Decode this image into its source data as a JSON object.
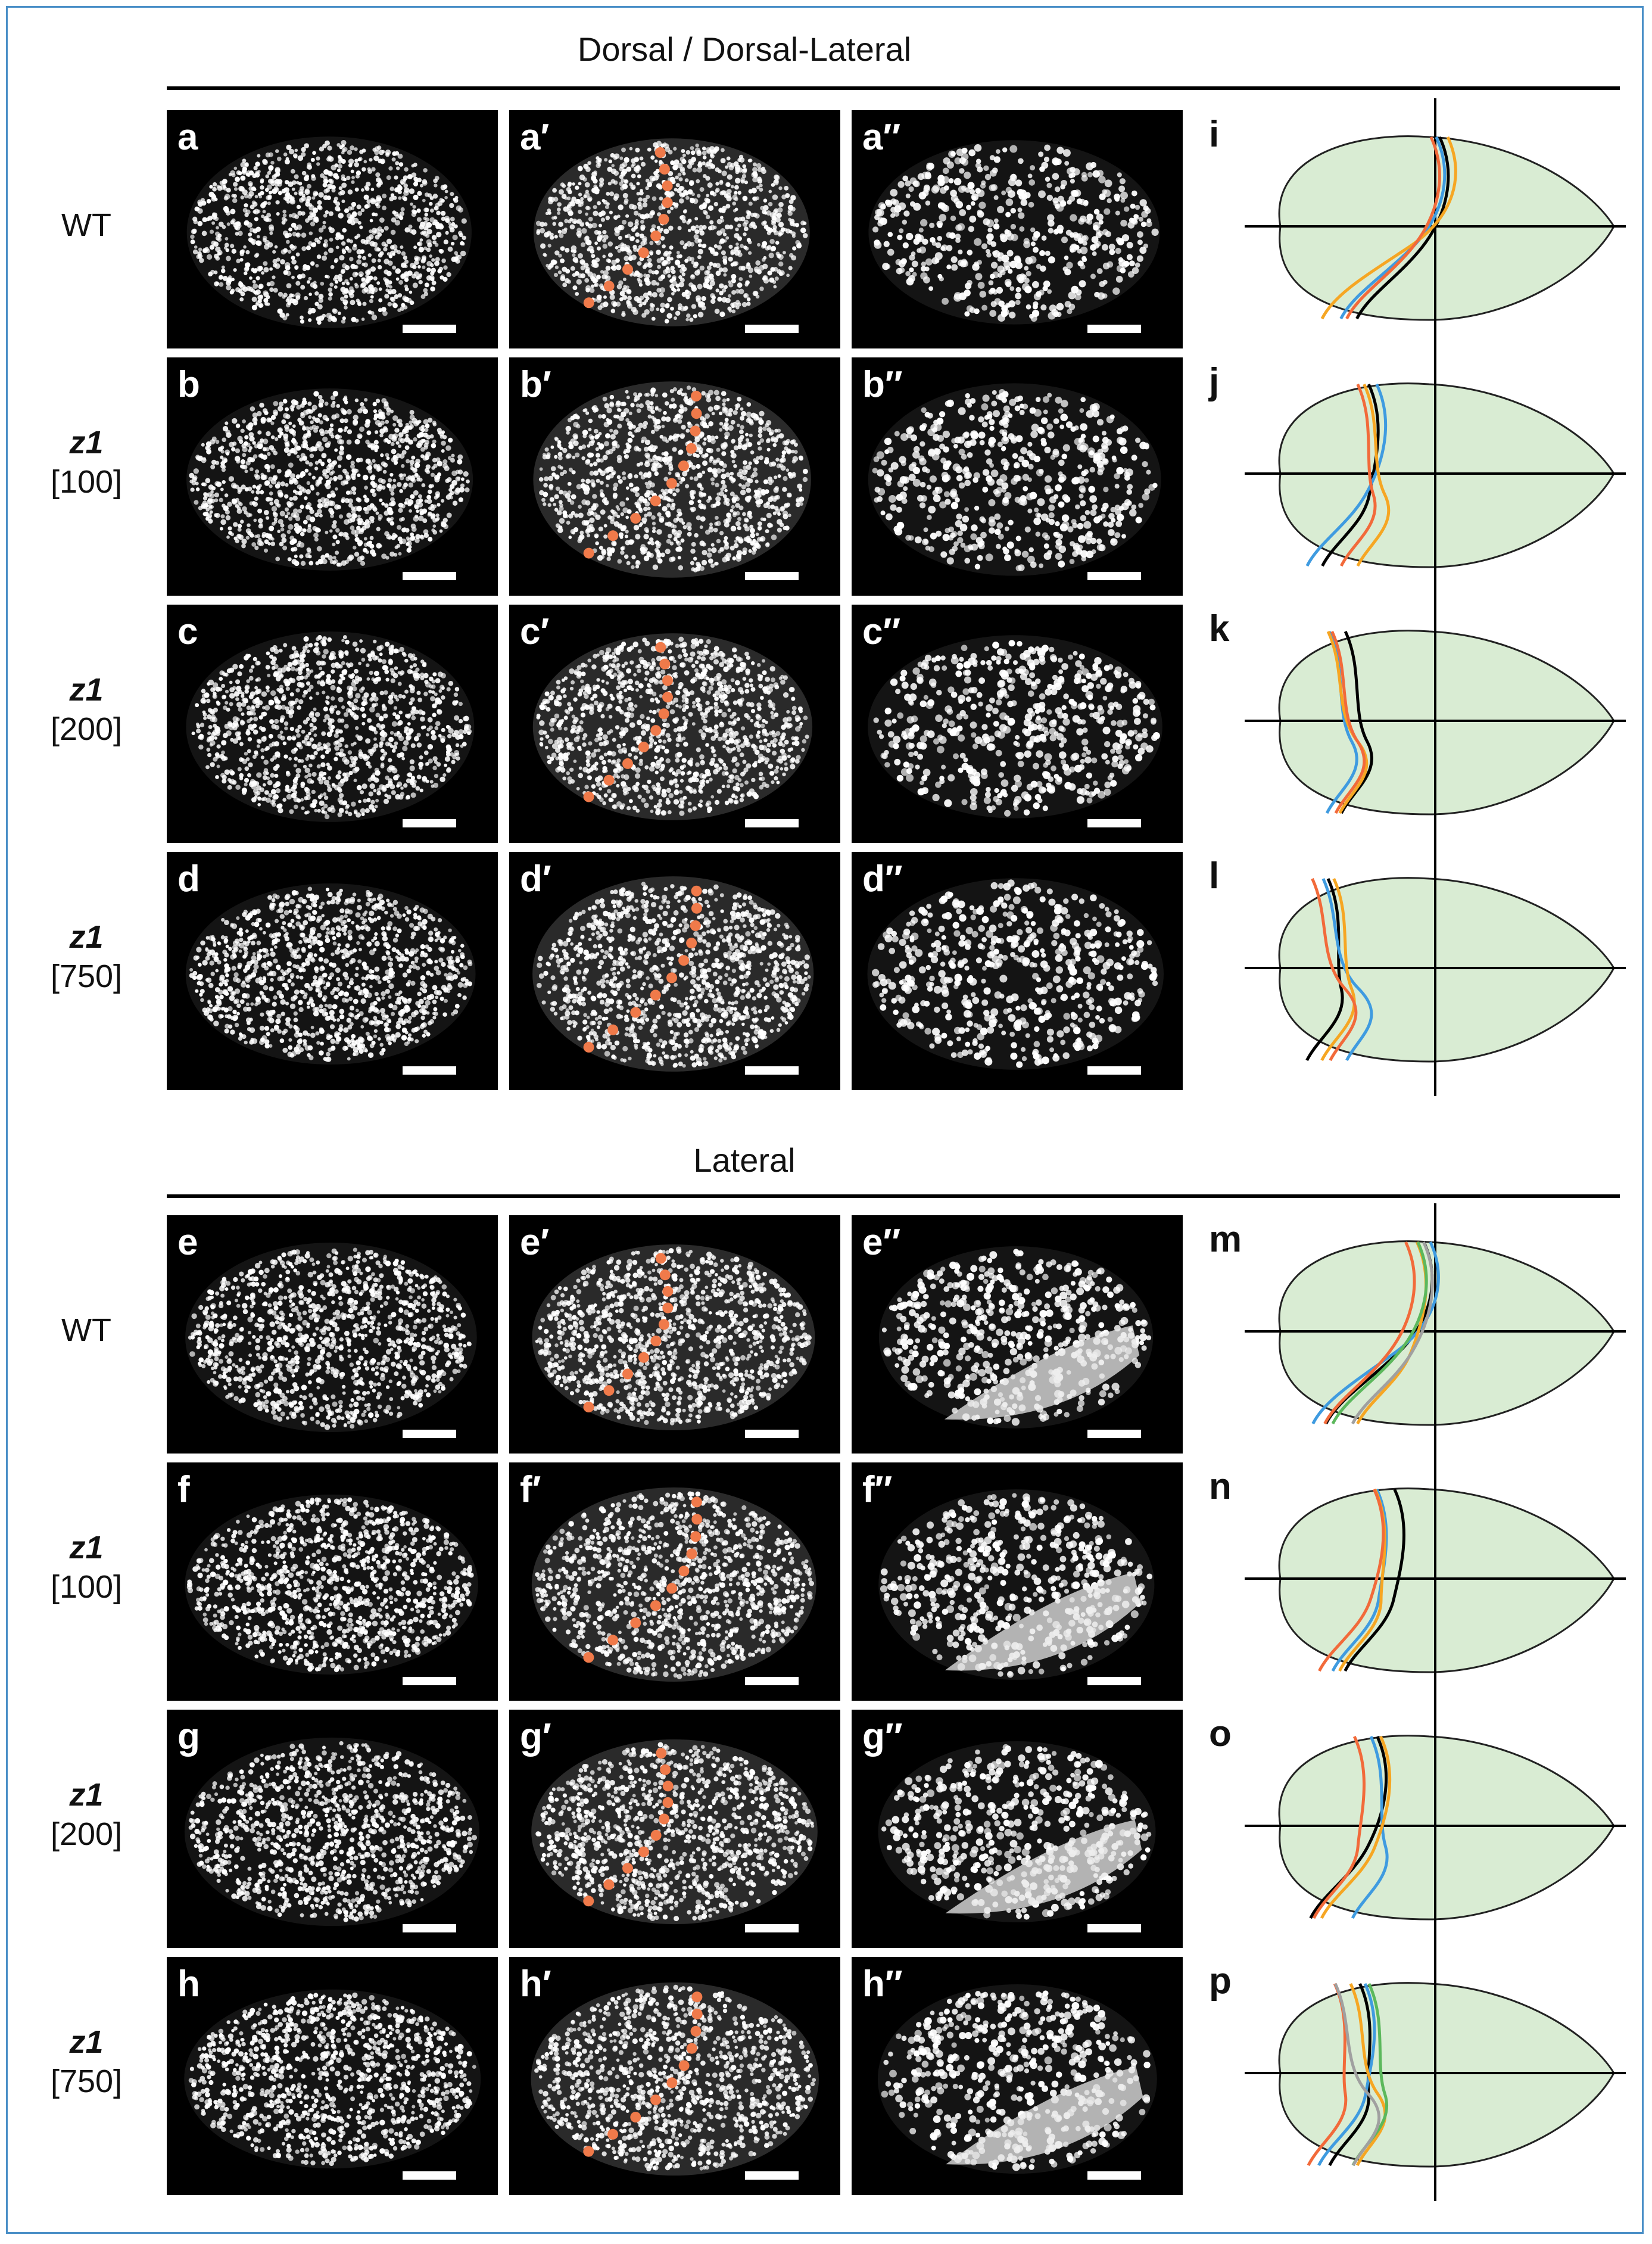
{
  "sections": [
    {
      "title": "Dorsal / Dorsal-Lateral"
    },
    {
      "title": "Lateral"
    }
  ],
  "rows": [
    {
      "genotype": "WT",
      "dose": "",
      "panels": [
        "a",
        "a′",
        "a′′"
      ],
      "schematic": "i"
    },
    {
      "genotype": "z1",
      "dose": "[100]",
      "panels": [
        "b",
        "b′",
        "b′′"
      ],
      "schematic": "j"
    },
    {
      "genotype": "z1",
      "dose": "[200]",
      "panels": [
        "c",
        "c′",
        "c′′"
      ],
      "schematic": "k"
    },
    {
      "genotype": "z1",
      "dose": "[750]",
      "panels": [
        "d",
        "d′",
        "d′′"
      ],
      "schematic": "l"
    },
    {
      "genotype": "WT",
      "dose": "",
      "panels": [
        "e",
        "e′",
        "e′′"
      ],
      "schematic": "m"
    },
    {
      "genotype": "z1",
      "dose": "[100]",
      "panels": [
        "f",
        "f′",
        "f′′"
      ],
      "schematic": "n"
    },
    {
      "genotype": "z1",
      "dose": "[200]",
      "panels": [
        "g",
        "g′",
        "g′′"
      ],
      "schematic": "o"
    },
    {
      "genotype": "z1",
      "dose": "[750]",
      "panels": [
        "h",
        "h′",
        "h′′"
      ],
      "schematic": "p"
    }
  ],
  "colors": {
    "panel_bg": "#000000",
    "nuclei": "#ffffff",
    "marker": "#f07a4a",
    "schematic_fill": "#d9ecd3",
    "frame": "#4a8fc7",
    "trace_colors": [
      "#000000",
      "#3f9be0",
      "#f6a623",
      "#f26a3a",
      "#5cb85c",
      "#a0a0a0"
    ]
  }
}
